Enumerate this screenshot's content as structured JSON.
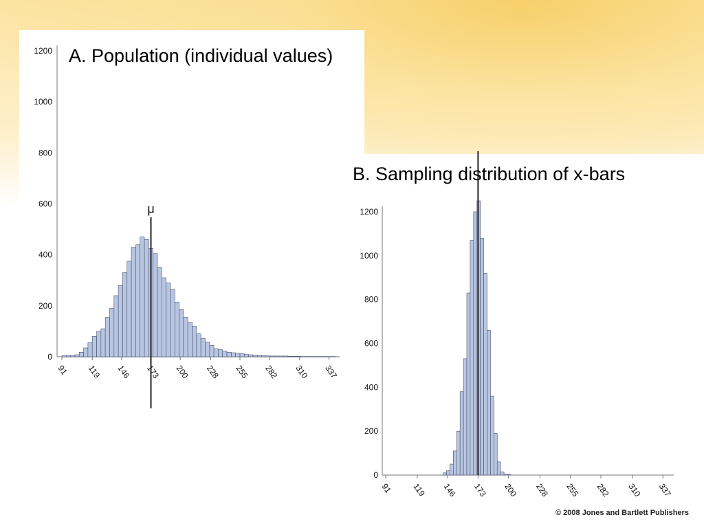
{
  "slide": {
    "copyright": "© 2008 Jones and Bartlett Publishers"
  },
  "chart_data": [
    {
      "type": "bar",
      "title": "A. Population (individual values)",
      "xlabel": "",
      "ylabel": "",
      "x_ticks": [
        "91",
        "119",
        "146",
        "173",
        "200",
        "228",
        "255",
        "282",
        "310",
        "337"
      ],
      "y_ticks": [
        "0",
        "200",
        "400",
        "600",
        "800",
        "1000",
        "1200"
      ],
      "ylim": [
        0,
        1200
      ],
      "xlim": [
        91,
        343
      ],
      "bin_width": 4,
      "bin_start": 91,
      "values": [
        5,
        5,
        6,
        8,
        18,
        35,
        55,
        80,
        100,
        110,
        155,
        190,
        240,
        280,
        330,
        375,
        430,
        440,
        470,
        460,
        425,
        405,
        350,
        310,
        290,
        265,
        215,
        185,
        155,
        135,
        120,
        90,
        72,
        58,
        45,
        32,
        28,
        22,
        18,
        16,
        14,
        12,
        9,
        8,
        7,
        6,
        5,
        4,
        3,
        3,
        3,
        3,
        2,
        2,
        2,
        1,
        1,
        1,
        1,
        1,
        1,
        1,
        1
      ],
      "reference_line": {
        "label": "μ",
        "x": 173
      },
      "grid": false
    },
    {
      "type": "bar",
      "title": "B. Sampling distribution of x-bars",
      "xlabel": "",
      "ylabel": "",
      "x_ticks": [
        "91",
        "119",
        "146",
        "173",
        "200",
        "228",
        "255",
        "282",
        "310",
        "337"
      ],
      "y_ticks": [
        "0",
        "200",
        "400",
        "600",
        "800",
        "1000",
        "1200"
      ],
      "ylim": [
        0,
        1200
      ],
      "xlim": [
        91,
        343
      ],
      "bin_width": 3,
      "bin_start": 142,
      "values": [
        10,
        20,
        50,
        110,
        200,
        380,
        530,
        830,
        1070,
        1200,
        1250,
        1080,
        920,
        660,
        360,
        190,
        60,
        15,
        5,
        2
      ],
      "reference_line": {
        "label": "",
        "x": 173
      },
      "grid": false
    }
  ]
}
